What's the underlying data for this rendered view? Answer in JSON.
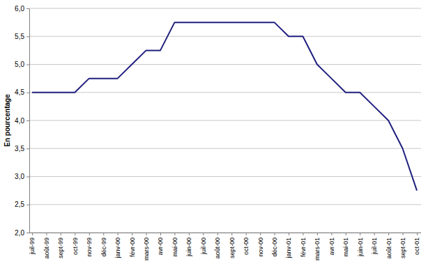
{
  "chart_data": {
    "type": "line",
    "y_label": "En pourcentage",
    "categories": [
      "juil-99",
      "août-99",
      "sept-99",
      "oct-99",
      "nov-99",
      "déc-99",
      "janv-00",
      "févr-00",
      "mars-00",
      "avr-00",
      "mai-00",
      "juin-00",
      "juil-00",
      "août-00",
      "sept-00",
      "oct-00",
      "nov-00",
      "déc-00",
      "janv-01",
      "févr-01",
      "mars-01",
      "avr-01",
      "mai-01",
      "juin-01",
      "juil-01",
      "août-01",
      "sept-01",
      "oct-01"
    ],
    "values": [
      4.5,
      4.5,
      4.5,
      4.5,
      4.75,
      4.75,
      4.75,
      5.0,
      5.25,
      5.25,
      5.75,
      5.75,
      5.75,
      5.75,
      5.75,
      5.75,
      5.75,
      5.75,
      5.5,
      5.5,
      5.0,
      4.75,
      4.5,
      4.5,
      4.25,
      4.0,
      3.5,
      2.75
    ],
    "color": "#1f1f7f",
    "ylim": [
      2.0,
      6.0
    ],
    "yticks": [
      {
        "value": 2.0,
        "label": "2,0"
      },
      {
        "value": 2.5,
        "label": "2,5"
      },
      {
        "value": 3.0,
        "label": "3,0"
      },
      {
        "value": 3.5,
        "label": "3,5"
      },
      {
        "value": 4.0,
        "label": "4,0"
      },
      {
        "value": 4.5,
        "label": "4,5"
      },
      {
        "value": 5.0,
        "label": "5,0"
      },
      {
        "value": 5.5,
        "label": "5,5"
      },
      {
        "value": 6.0,
        "label": "6,0"
      }
    ],
    "grid": true
  }
}
